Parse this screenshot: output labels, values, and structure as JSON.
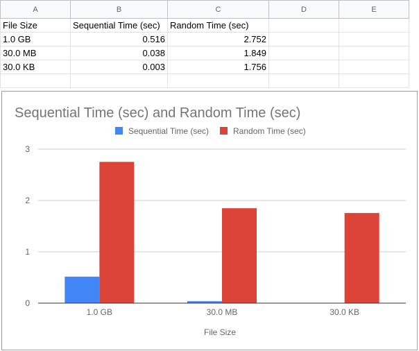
{
  "sheet": {
    "columns": [
      "A",
      "B",
      "C",
      "D",
      "E"
    ],
    "rows": [
      [
        "File Size",
        "Sequential Time (sec)",
        "Random Time (sec)",
        "",
        ""
      ],
      [
        "1.0 GB",
        "0.516",
        "2.752",
        "",
        ""
      ],
      [
        "30.0 MB",
        "0.038",
        "1.849",
        "",
        ""
      ],
      [
        "30.0 KB",
        "0.003",
        "1.756",
        "",
        ""
      ],
      [
        "",
        "",
        "",
        "",
        ""
      ]
    ]
  },
  "chart_data": {
    "type": "bar",
    "title": "Sequential Time (sec) and Random Time (sec)",
    "xlabel": "File Size",
    "ylabel": "",
    "categories": [
      "1.0 GB",
      "30.0 MB",
      "30.0 KB"
    ],
    "series": [
      {
        "name": "Sequential Time (sec)",
        "values": [
          0.516,
          0.038,
          0.003
        ],
        "color": "#4285f4"
      },
      {
        "name": "Random Time (sec)",
        "values": [
          2.752,
          1.849,
          1.756
        ],
        "color": "#db4437"
      }
    ],
    "ylim": [
      0,
      3
    ],
    "yticks": [
      "0",
      "1",
      "2",
      "3"
    ],
    "grid": true,
    "legend": "top"
  }
}
